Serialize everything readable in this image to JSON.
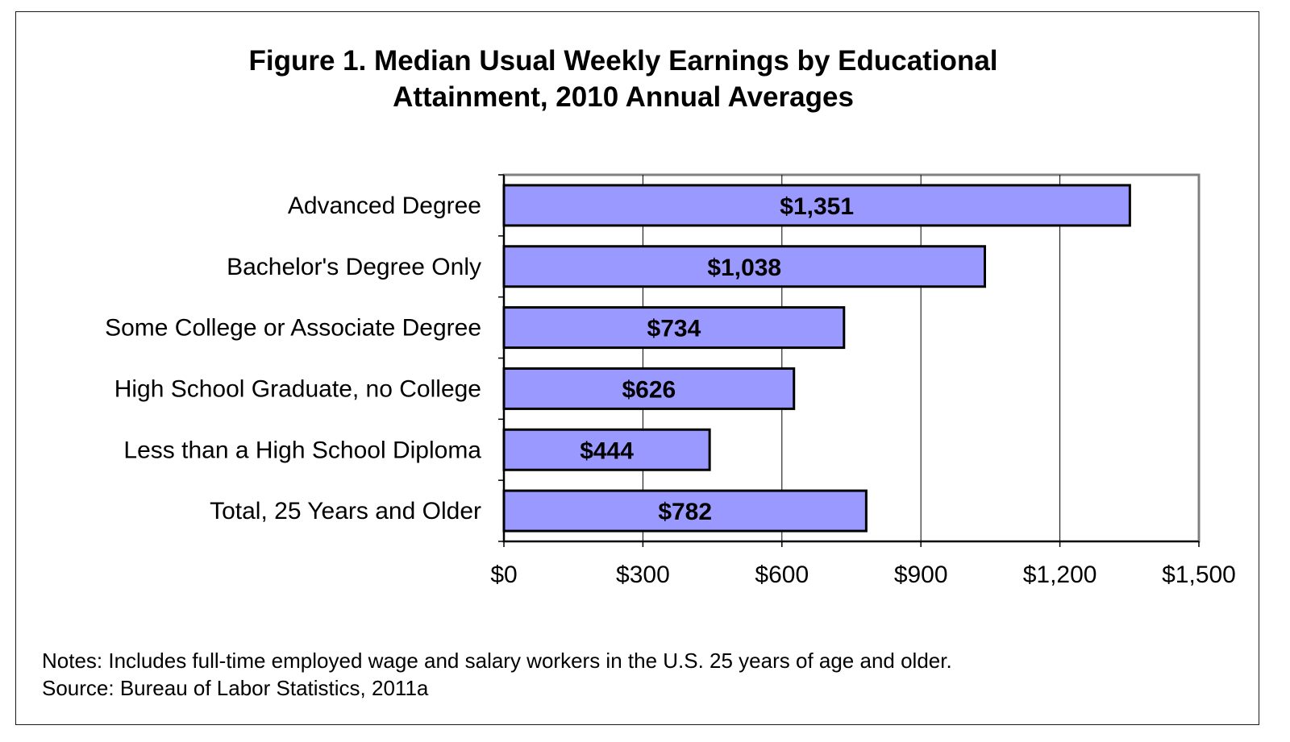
{
  "chart_data": {
    "type": "bar",
    "orientation": "horizontal",
    "title_lines": [
      "Figure 1. Median Usual Weekly Earnings by Educational",
      "Attainment, 2010 Annual Averages"
    ],
    "categories": [
      "Advanced Degree",
      "Bachelor's Degree Only",
      "Some College or Associate Degree",
      "High School Graduate, no College",
      "Less than a High School Diploma",
      "Total, 25 Years and Older"
    ],
    "values": [
      1351,
      1038,
      734,
      626,
      444,
      782
    ],
    "data_labels": [
      "$1,351",
      "$1,038",
      "$734",
      "$626",
      "$444",
      "$782"
    ],
    "xlim": [
      0,
      1500
    ],
    "x_ticks": [
      0,
      300,
      600,
      900,
      1200,
      1500
    ],
    "x_tick_labels": [
      "$0",
      "$300",
      "$600",
      "$900",
      "$1,200",
      "$1,500"
    ],
    "grid": "vertical",
    "legend": "none",
    "bar_color": "#9999ff",
    "notes": [
      "Notes: Includes full-time employed wage and salary workers in the U.S. 25 years of age and older.",
      "Source: Bureau of Labor Statistics, 2011a"
    ]
  }
}
